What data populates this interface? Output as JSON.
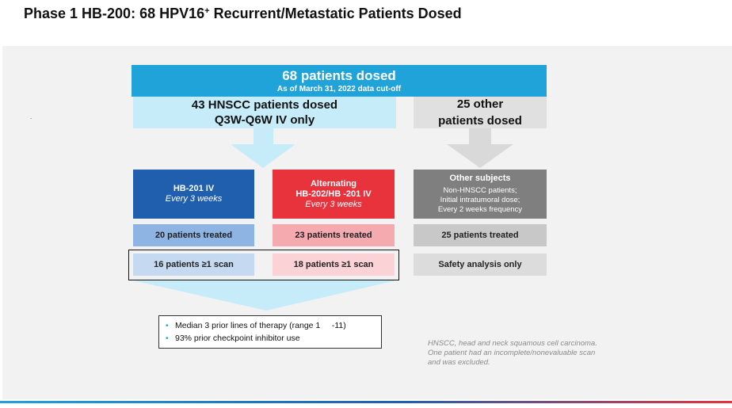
{
  "title": {
    "before_sup": "Phase 1 HB-200: 68 HPV16",
    "sup": "+",
    "after_sup": " Recurrent/Metastatic Patients Dosed"
  },
  "side_dot": ".",
  "banner": {
    "headline": "68 patients dosed",
    "cutoff": "As of March 31, 2022 data cut-off"
  },
  "hnscc_group": {
    "line1": "43 HNSCC patients dosed",
    "line2": "Q3W-Q6W IV only"
  },
  "other_group": {
    "line1": "25 other",
    "line2": "patients dosed"
  },
  "arms": [
    {
      "label": "HB-201 IV",
      "schedule": "Every 3 weeks",
      "treated": "20 patients treated",
      "scan": "16 patients ≥1 scan"
    },
    {
      "label_line1": "Alternating",
      "label_line2": "HB-202/HB -201 IV",
      "schedule": "Every 3 weeks",
      "treated": "23 patients treated",
      "scan": "18 patients ≥1 scan"
    },
    {
      "label": "Other subjects",
      "desc_line1": "Non-HNSCC patients;",
      "desc_line2": "Initial intratumoral dose;",
      "desc_line3": "Every 2 weeks frequency",
      "treated": "25 patients treated",
      "scan": "Safety analysis only"
    }
  ],
  "bullets": [
    "Median 3 prior lines of therapy (range 1     -11)",
    "93% prior checkpoint inhibitor use"
  ],
  "bullet_glyph": "•",
  "footnote": {
    "line1": "HNSCC, head and neck squamous cell carcinoma.",
    "line2": "One patient had an incomplete/nonevaluable scan",
    "line3": "and was excluded."
  },
  "colors": {
    "banner_blue": "#1fa3d8",
    "light_blue": "#c6ecf9",
    "arm1_blue": "#1f5fad",
    "arm2_red": "#e8323c",
    "arm3_gray": "#7f7f7f"
  }
}
